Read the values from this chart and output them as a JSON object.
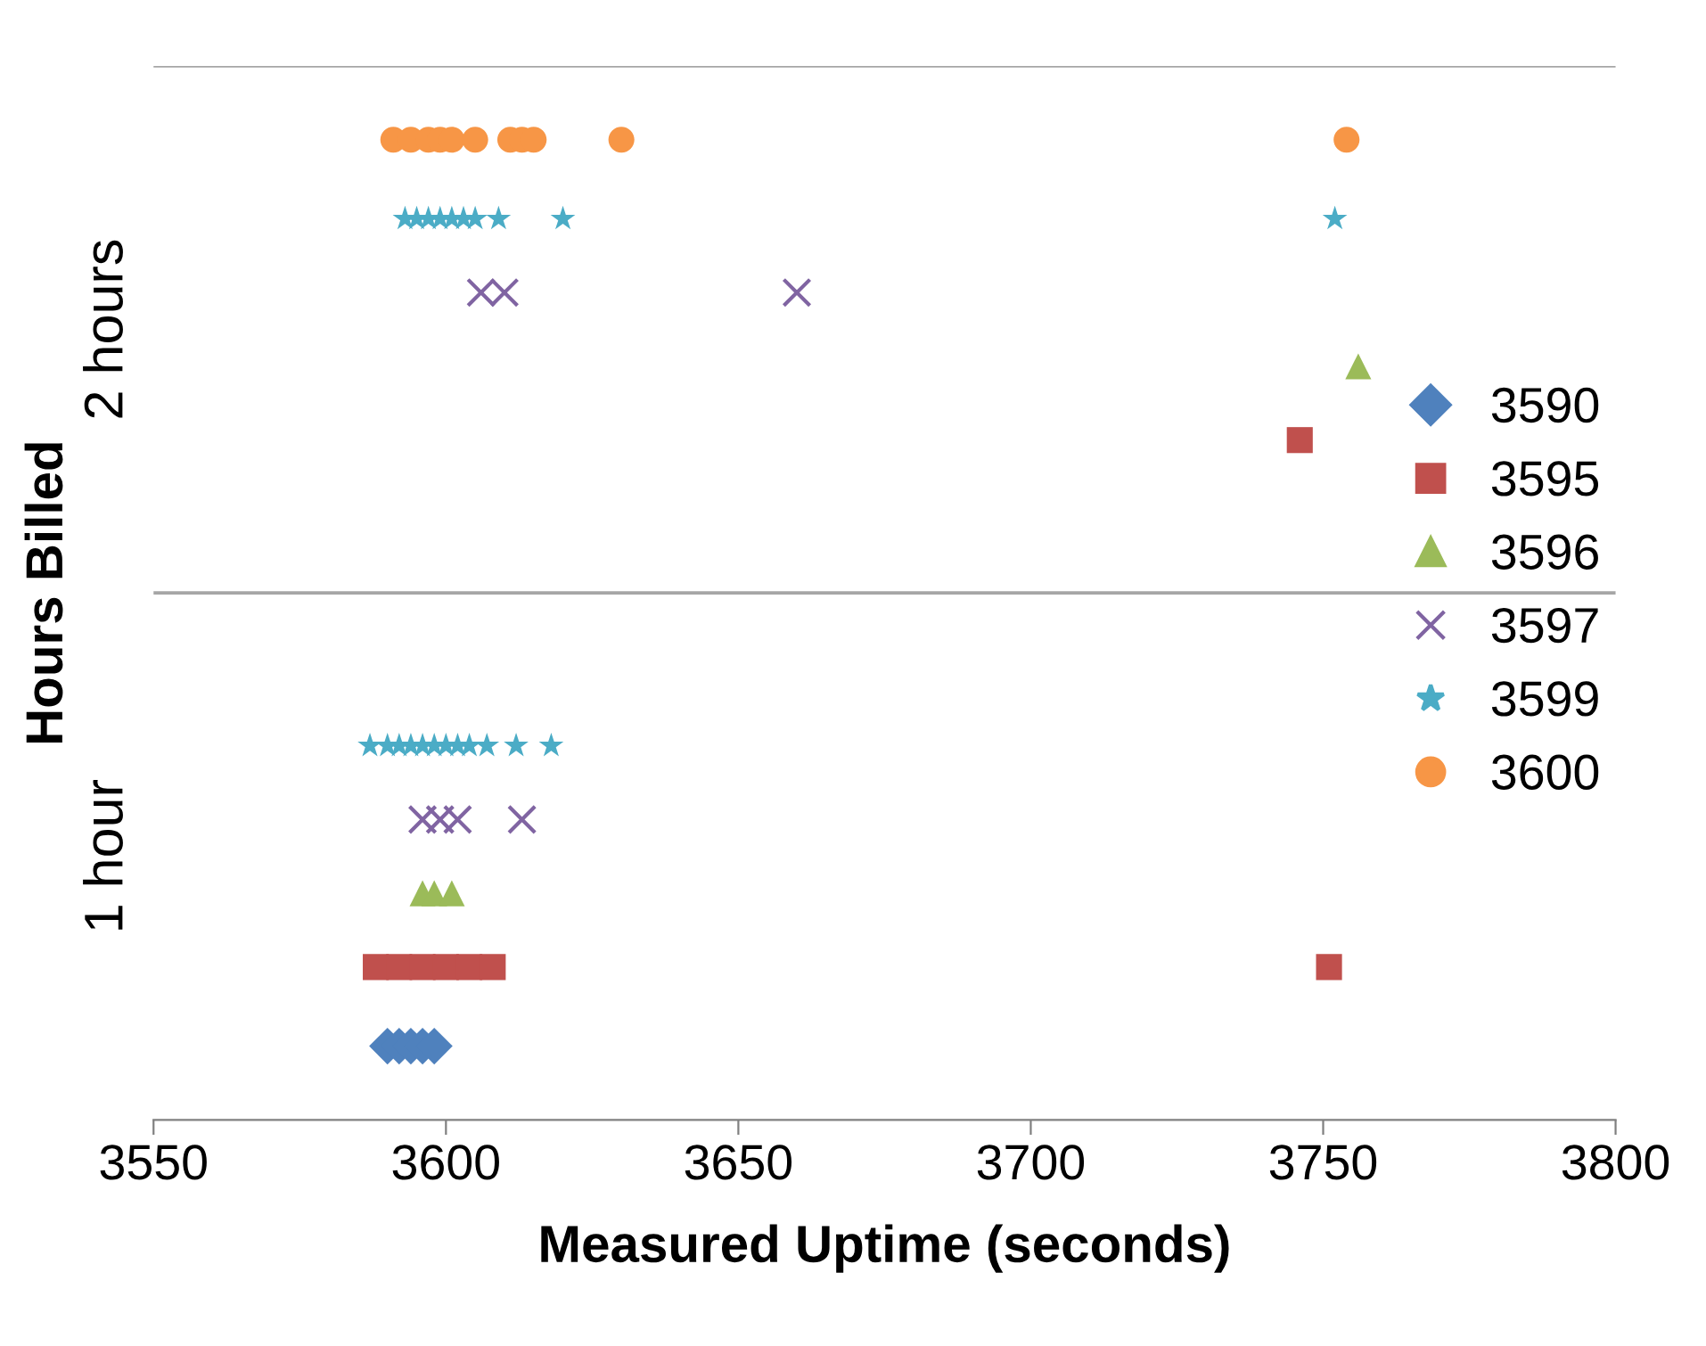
{
  "chart_data": {
    "type": "scatter",
    "xlabel": "Measured Uptime (seconds)",
    "ylabel": "Hours Billed",
    "xlim": [
      3550,
      3800
    ],
    "xticks": [
      3550,
      3600,
      3650,
      3700,
      3750,
      3800
    ],
    "ylim": [
      0,
      2
    ],
    "yticks": [
      {
        "value": 0.5,
        "label": "1 hour"
      },
      {
        "value": 1.5,
        "label": "2 hours"
      }
    ],
    "ref_lines": [
      {
        "axis": "y",
        "value": 1,
        "color": "#a6a6a6"
      },
      {
        "axis": "y",
        "value": 2,
        "color": "#a6a6a6"
      }
    ],
    "legend": "right",
    "grid": false,
    "series": [
      {
        "name": "3590",
        "color": "#4f81bd",
        "marker": "diamond",
        "x": [
          3590,
          3592,
          3594,
          3596,
          3598
        ],
        "values": [
          0.14,
          0.14,
          0.14,
          0.14,
          0.14
        ]
      },
      {
        "name": "3595",
        "color": "#c0504d",
        "marker": "square",
        "x": [
          3588,
          3592,
          3596,
          3600,
          3604,
          3608,
          3751,
          3746
        ],
        "values": [
          0.29,
          0.29,
          0.29,
          0.29,
          0.29,
          0.29,
          0.29,
          1.29
        ]
      },
      {
        "name": "3596",
        "color": "#9bbb59",
        "marker": "triangle",
        "x": [
          3596,
          3598,
          3601,
          3756
        ],
        "values": [
          0.43,
          0.43,
          0.43,
          1.43
        ]
      },
      {
        "name": "3597",
        "color": "#8064a2",
        "marker": "cross",
        "x": [
          3596,
          3599,
          3602,
          3613,
          3606,
          3610,
          3660
        ],
        "values": [
          0.57,
          0.57,
          0.57,
          0.57,
          1.57,
          1.57,
          1.57
        ]
      },
      {
        "name": "3599",
        "color": "#4bacc6",
        "marker": "star",
        "x": [
          3587,
          3590,
          3592,
          3594,
          3596,
          3598,
          3600,
          3602,
          3604,
          3607,
          3612,
          3618,
          3593,
          3595,
          3597,
          3599,
          3601,
          3603,
          3605,
          3609,
          3620,
          3752
        ],
        "values": [
          0.71,
          0.71,
          0.71,
          0.71,
          0.71,
          0.71,
          0.71,
          0.71,
          0.71,
          0.71,
          0.71,
          0.71,
          1.71,
          1.71,
          1.71,
          1.71,
          1.71,
          1.71,
          1.71,
          1.71,
          1.71,
          1.71
        ]
      },
      {
        "name": "3600",
        "color": "#f79646",
        "marker": "circle",
        "x": [
          3591,
          3594,
          3597,
          3599,
          3601,
          3605,
          3611,
          3613,
          3615,
          3630,
          3754
        ],
        "values": [
          1.86,
          1.86,
          1.86,
          1.86,
          1.86,
          1.86,
          1.86,
          1.86,
          1.86,
          1.86,
          1.86
        ]
      }
    ]
  }
}
